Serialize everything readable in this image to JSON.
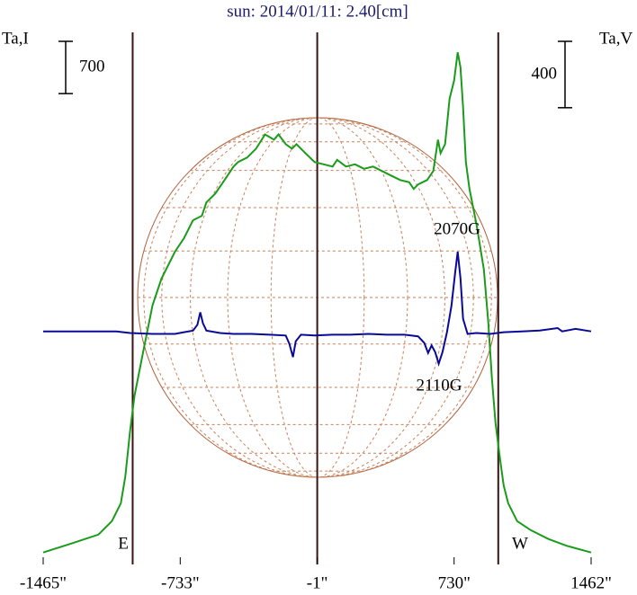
{
  "chart_data": {
    "type": "line",
    "title": "sun: 2014/01/11: 2.40[cm]",
    "y_label": "Ta,I",
    "y2_label": "Ta,V",
    "xlim": [
      -1465,
      1462
    ],
    "xticks": [
      {
        "value": -1465,
        "label": "-1465\""
      },
      {
        "value": -733,
        "label": "-733\""
      },
      {
        "value": -1,
        "label": "-1\""
      },
      {
        "value": 730,
        "label": "730\""
      },
      {
        "value": 1462,
        "label": "1462\""
      }
    ],
    "ylim": [
      0,
      7200
    ],
    "y2lim": [
      -1400,
      1840
    ],
    "vertical_lines": [
      -987,
      -1,
      966
    ],
    "limb_labels": [
      "E",
      "W"
    ],
    "annotations": [
      "2070G",
      "2110G"
    ],
    "series": [
      {
        "color": "#1a9c1a",
        "scale_bar": 700,
        "x": [
          -1465,
          -1314,
          -1170,
          -1098,
          -1050,
          -1026,
          -1001,
          -977,
          -929,
          -881,
          -833,
          -761,
          -713,
          -665,
          -617,
          -593,
          -545,
          -496,
          -448,
          -424,
          -376,
          -328,
          -280,
          -232,
          -208,
          -169,
          -136,
          -112,
          -64,
          -15,
          33,
          81,
          105,
          153,
          201,
          249,
          297,
          345,
          393,
          442,
          490,
          514,
          538,
          586,
          619,
          644,
          658,
          682,
          706,
          730,
          749,
          764,
          778,
          793,
          812,
          850,
          889,
          913,
          932,
          951,
          975,
          995,
          1019,
          1067,
          1139,
          1235,
          1331,
          1462
        ],
        "values": [
          160,
          280,
          400,
          580,
          820,
          1180,
          1780,
          2260,
          2870,
          3470,
          3830,
          4190,
          4370,
          4610,
          4670,
          4850,
          4970,
          5150,
          5330,
          5390,
          5450,
          5570,
          5760,
          5690,
          5760,
          5630,
          5570,
          5630,
          5510,
          5390,
          5360,
          5330,
          5420,
          5330,
          5360,
          5300,
          5330,
          5270,
          5210,
          5150,
          5120,
          5030,
          5090,
          5150,
          5270,
          5690,
          5510,
          5630,
          6240,
          6480,
          6860,
          6660,
          6120,
          5390,
          5030,
          4550,
          3950,
          3230,
          2500,
          1900,
          1420,
          1060,
          820,
          580,
          460,
          340,
          250,
          160
        ]
      },
      {
        "color": "#0a0a96",
        "axis": "y2",
        "scale_bar": 400,
        "x": [
          -1465,
          -1074,
          -1001,
          -881,
          -761,
          -713,
          -665,
          -641,
          -626,
          -612,
          -593,
          -520,
          -448,
          -352,
          -256,
          -169,
          -150,
          -131,
          -116,
          -88,
          -15,
          81,
          177,
          273,
          369,
          466,
          538,
          571,
          591,
          610,
          629,
          648,
          668,
          692,
          716,
          735,
          749,
          764,
          778,
          802,
          850,
          923,
          995,
          1091,
          1187,
          1283,
          1307,
          1379,
          1462
        ],
        "values": [
          5,
          5,
          -5,
          -10,
          -10,
          0,
          10,
          45,
          120,
          55,
          10,
          -5,
          -10,
          -10,
          -15,
          -20,
          -70,
          -150,
          -55,
          -15,
          -20,
          -15,
          -15,
          -10,
          -15,
          -15,
          -25,
          -65,
          -125,
          -80,
          -120,
          -190,
          -120,
          0,
          160,
          350,
          485,
          325,
          80,
          -10,
          -5,
          -10,
          0,
          5,
          10,
          25,
          5,
          20,
          5
        ]
      }
    ]
  }
}
